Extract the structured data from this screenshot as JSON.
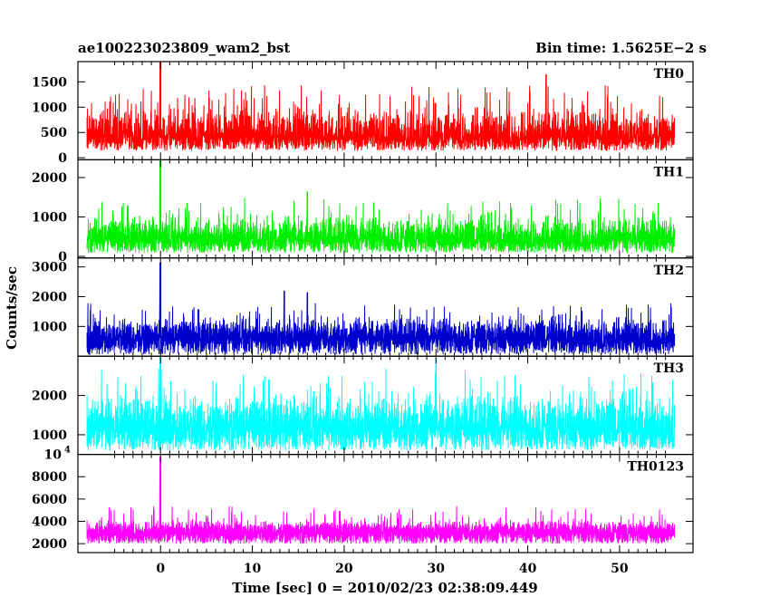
{
  "header": {
    "left_title": "ae100223023809_wam2_bst",
    "right_title": "Bin time: 1.5625E−2 s"
  },
  "chart_data": {
    "type": "line",
    "title": "ae100223023809_wam2_bst",
    "subtitle": "Bin time: 1.5625E−2 s",
    "xlabel": "Time [sec] 0 = 2010/02/23 02:38:09.449",
    "ylabel": "Counts/sec",
    "xlim": [
      -9,
      58
    ],
    "data_xrange": [
      -8,
      56
    ],
    "xticks": [
      0,
      10,
      20,
      30,
      40,
      50
    ],
    "bin_time": 0.015625,
    "panels": [
      {
        "name": "TH0",
        "color": "#ff0000",
        "ylim": [
          -40,
          1900
        ],
        "yticks": [
          0,
          500,
          1000,
          1500
        ],
        "baseline": 140,
        "mean": 620,
        "noise": 330,
        "max_common": 1450,
        "spikes": [
          {
            "x": 0,
            "y": 1900
          },
          {
            "x": 42,
            "y": 1650
          }
        ]
      },
      {
        "name": "TH1",
        "color": "#00ee00",
        "ylim": [
          -40,
          2450
        ],
        "yticks": [
          0,
          1000,
          2000
        ],
        "baseline": 90,
        "mean": 650,
        "noise": 330,
        "max_common": 1500,
        "spikes": [
          {
            "x": 0,
            "y": 2450
          },
          {
            "x": 16,
            "y": 1650
          }
        ]
      },
      {
        "name": "TH2",
        "color": "#0000cc",
        "ylim": [
          0,
          3300
        ],
        "yticks": [
          1000,
          2000,
          3000
        ],
        "baseline": 60,
        "mean": 900,
        "noise": 360,
        "max_common": 1800,
        "spikes": [
          {
            "x": 0,
            "y": 3150
          },
          {
            "x": 13.5,
            "y": 2200
          },
          {
            "x": 16,
            "y": 2150
          }
        ]
      },
      {
        "name": "TH3",
        "color": "#00ffff",
        "ylim": [
          500,
          3000
        ],
        "yticks": [
          1000,
          2000
        ],
        "baseline": 600,
        "mean": 1500,
        "noise": 480,
        "max_common": 2700,
        "spikes": [
          {
            "x": 0,
            "y": 3000
          },
          {
            "x": 30,
            "y": 2950
          }
        ]
      },
      {
        "name": "TH0123",
        "color": "#ff00ff",
        "ylim": [
          1200,
          10000
        ],
        "yticks": [
          2000,
          4000,
          6000,
          8000
        ],
        "top_label": "10",
        "top_label_exp": "4",
        "baseline": 2000,
        "mean": 3500,
        "noise": 520,
        "max_common": 5400,
        "spikes": [
          {
            "x": 0,
            "y": 9800
          }
        ]
      }
    ]
  }
}
